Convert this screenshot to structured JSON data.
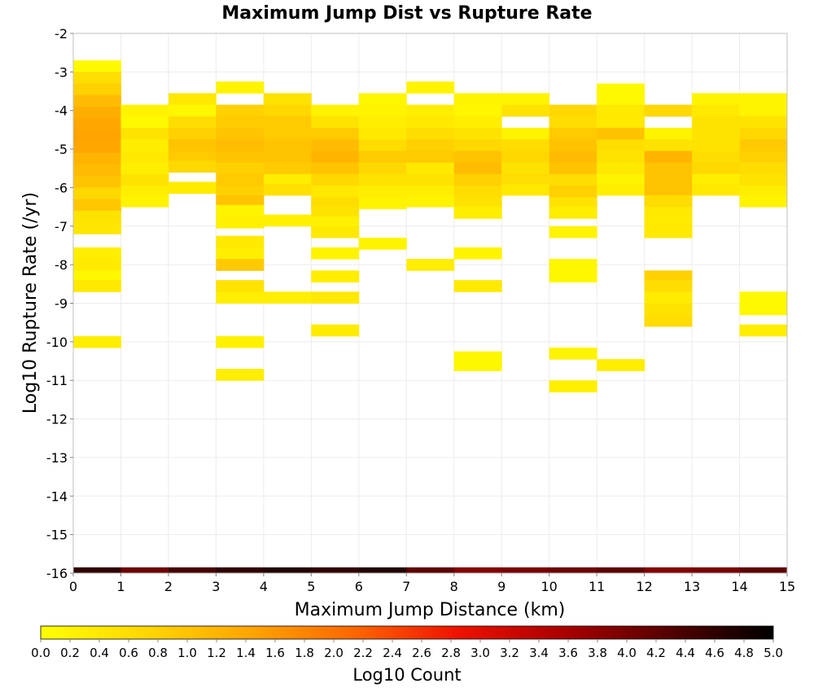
{
  "chart_data": {
    "type": "heatmap",
    "title": "Maximum Jump Dist vs Rupture Rate",
    "xlabel": "Maximum Jump Distance (km)",
    "ylabel": "Log10 Rupture Rate (/yr)",
    "xlim": [
      0,
      15
    ],
    "ylim": [
      -16,
      -2
    ],
    "x_ticks": [
      "0",
      "1",
      "2",
      "3",
      "4",
      "5",
      "6",
      "7",
      "8",
      "9",
      "10",
      "11",
      "12",
      "13",
      "14",
      "15"
    ],
    "y_ticks": [
      "-2",
      "-3",
      "-4",
      "-5",
      "-6",
      "-7",
      "-8",
      "-9",
      "-10",
      "-11",
      "-12",
      "-13",
      "-14",
      "-15",
      "-16"
    ],
    "x_bin_width": 1,
    "y_bin_height": 0.3,
    "grid": true,
    "colorbar": {
      "label": "Log10 Count",
      "range": [
        0,
        5
      ],
      "ticks": [
        "0.0",
        "0.2",
        "0.4",
        "0.6",
        "0.8",
        "1.0",
        "1.2",
        "1.4",
        "1.6",
        "1.8",
        "2.0",
        "2.2",
        "2.4",
        "2.6",
        "2.8",
        "3.0",
        "3.2",
        "3.4",
        "3.6",
        "3.8",
        "4.0",
        "4.2",
        "4.4",
        "4.6",
        "4.8",
        "5.0"
      ],
      "colors": [
        "#ffff00",
        "#ffd700",
        "#ffa500",
        "#ff6600",
        "#ee1100",
        "#aa0000",
        "#550000",
        "#000000"
      ]
    },
    "cells": [
      [
        0,
        -2.85,
        0.1
      ],
      [
        0,
        -3.15,
        0.6
      ],
      [
        0,
        -3.45,
        0.8
      ],
      [
        0,
        -3.75,
        1.1
      ],
      [
        0,
        -4.05,
        1.3
      ],
      [
        0,
        -4.35,
        1.4
      ],
      [
        0,
        -4.65,
        1.45
      ],
      [
        0,
        -4.95,
        1.4
      ],
      [
        0,
        -5.25,
        1.2
      ],
      [
        0,
        -5.55,
        1.1
      ],
      [
        0,
        -5.85,
        1.0
      ],
      [
        0,
        -6.15,
        0.7
      ],
      [
        0,
        -6.45,
        0.95
      ],
      [
        0,
        -6.75,
        0.5
      ],
      [
        0,
        -7.05,
        0.45
      ],
      [
        0,
        -7.7,
        0.3
      ],
      [
        0,
        -8.0,
        0.35
      ],
      [
        0,
        -8.3,
        0.15
      ],
      [
        0,
        -8.55,
        0.4
      ],
      [
        0,
        -10.0,
        0.3
      ],
      [
        1,
        -4.0,
        0.2
      ],
      [
        1,
        -4.3,
        0.1
      ],
      [
        1,
        -4.6,
        0.5
      ],
      [
        1,
        -4.9,
        0.3
      ],
      [
        1,
        -5.2,
        0.4
      ],
      [
        1,
        -5.5,
        0.3
      ],
      [
        1,
        -5.8,
        0.5
      ],
      [
        1,
        -6.1,
        0.3
      ],
      [
        1,
        -6.35,
        0.2
      ],
      [
        2,
        -3.7,
        0.4
      ],
      [
        2,
        -4.0,
        0.15
      ],
      [
        2,
        -4.3,
        0.6
      ],
      [
        2,
        -4.6,
        0.8
      ],
      [
        2,
        -4.9,
        1.0
      ],
      [
        2,
        -5.2,
        0.9
      ],
      [
        2,
        -5.45,
        0.7
      ],
      [
        2,
        -6.0,
        0.35
      ],
      [
        3,
        -3.4,
        0.2
      ],
      [
        3,
        -4.0,
        0.8
      ],
      [
        3,
        -4.3,
        0.9
      ],
      [
        3,
        -4.6,
        1.0
      ],
      [
        3,
        -4.9,
        1.1
      ],
      [
        3,
        -5.2,
        1.0
      ],
      [
        3,
        -5.5,
        0.8
      ],
      [
        3,
        -5.8,
        0.9
      ],
      [
        3,
        -6.1,
        0.8
      ],
      [
        3,
        -6.35,
        1.0
      ],
      [
        3,
        -6.6,
        0.2
      ],
      [
        3,
        -6.9,
        0.25
      ],
      [
        3,
        -7.4,
        0.4
      ],
      [
        3,
        -7.7,
        0.3
      ],
      [
        3,
        -8.0,
        0.9
      ],
      [
        3,
        -8.55,
        0.5
      ],
      [
        3,
        -8.85,
        0.3
      ],
      [
        3,
        -10.0,
        0.25
      ],
      [
        3,
        -10.85,
        0.3
      ],
      [
        4,
        -3.7,
        0.5
      ],
      [
        4,
        -4.0,
        0.7
      ],
      [
        4,
        -4.3,
        0.9
      ],
      [
        4,
        -4.6,
        0.9
      ],
      [
        4,
        -4.9,
        1.0
      ],
      [
        4,
        -5.2,
        1.0
      ],
      [
        4,
        -5.5,
        0.9
      ],
      [
        4,
        -5.8,
        0.3
      ],
      [
        4,
        -6.05,
        0.55
      ],
      [
        4,
        -6.85,
        0.25
      ],
      [
        4,
        -8.85,
        0.3
      ],
      [
        5,
        -4.0,
        0.2
      ],
      [
        5,
        -4.3,
        0.5
      ],
      [
        5,
        -4.6,
        0.9
      ],
      [
        5,
        -4.9,
        1.1
      ],
      [
        5,
        -5.2,
        1.2
      ],
      [
        5,
        -5.5,
        1.0
      ],
      [
        5,
        -5.8,
        0.7
      ],
      [
        5,
        -6.1,
        0.4
      ],
      [
        5,
        -6.4,
        0.6
      ],
      [
        5,
        -6.65,
        0.5
      ],
      [
        5,
        -6.9,
        0.25
      ],
      [
        5,
        -7.15,
        0.4
      ],
      [
        5,
        -7.7,
        0.2
      ],
      [
        5,
        -8.3,
        0.3
      ],
      [
        5,
        -8.85,
        0.4
      ],
      [
        5,
        -9.7,
        0.35
      ],
      [
        6,
        -3.7,
        0.15
      ],
      [
        6,
        -4.0,
        0.2
      ],
      [
        6,
        -4.3,
        0.3
      ],
      [
        6,
        -4.6,
        0.4
      ],
      [
        6,
        -4.9,
        0.6
      ],
      [
        6,
        -5.2,
        0.9
      ],
      [
        6,
        -5.5,
        0.7
      ],
      [
        6,
        -5.8,
        0.5
      ],
      [
        6,
        -6.1,
        0.3
      ],
      [
        6,
        -6.4,
        0.2
      ],
      [
        6,
        -7.45,
        0.2
      ],
      [
        7,
        -3.4,
        0.2
      ],
      [
        7,
        -4.0,
        0.3
      ],
      [
        7,
        -4.3,
        0.4
      ],
      [
        7,
        -4.6,
        0.6
      ],
      [
        7,
        -4.9,
        0.8
      ],
      [
        7,
        -5.2,
        0.9
      ],
      [
        7,
        -5.5,
        0.4
      ],
      [
        7,
        -5.8,
        0.5
      ],
      [
        7,
        -6.1,
        0.3
      ],
      [
        7,
        -6.35,
        0.2
      ],
      [
        7,
        -8.0,
        0.3
      ],
      [
        8,
        -3.7,
        0.2
      ],
      [
        8,
        -4.0,
        0.15
      ],
      [
        8,
        -4.3,
        0.3
      ],
      [
        8,
        -4.6,
        0.5
      ],
      [
        8,
        -4.9,
        0.7
      ],
      [
        8,
        -5.2,
        1.0
      ],
      [
        8,
        -5.5,
        1.1
      ],
      [
        8,
        -5.8,
        0.8
      ],
      [
        8,
        -6.1,
        0.6
      ],
      [
        8,
        -6.4,
        0.5
      ],
      [
        8,
        -6.65,
        0.3
      ],
      [
        8,
        -7.7,
        0.2
      ],
      [
        8,
        -8.55,
        0.4
      ],
      [
        8,
        -10.4,
        0.15
      ],
      [
        8,
        -10.6,
        0.15
      ],
      [
        9,
        -3.7,
        0.2
      ],
      [
        9,
        -4.0,
        0.5
      ],
      [
        9,
        -4.6,
        0.2
      ],
      [
        9,
        -4.9,
        0.6
      ],
      [
        9,
        -5.2,
        0.7
      ],
      [
        9,
        -5.5,
        0.5
      ],
      [
        9,
        -5.8,
        0.6
      ],
      [
        9,
        -6.05,
        0.4
      ],
      [
        10,
        -4.0,
        0.7
      ],
      [
        10,
        -4.3,
        0.6
      ],
      [
        10,
        -4.6,
        0.9
      ],
      [
        10,
        -4.9,
        1.0
      ],
      [
        10,
        -5.2,
        1.1
      ],
      [
        10,
        -5.5,
        1.0
      ],
      [
        10,
        -5.8,
        0.6
      ],
      [
        10,
        -6.1,
        0.8
      ],
      [
        10,
        -6.4,
        0.5
      ],
      [
        10,
        -6.65,
        0.3
      ],
      [
        10,
        -7.15,
        0.2
      ],
      [
        10,
        -8.0,
        0.15
      ],
      [
        10,
        -8.3,
        0.15
      ],
      [
        10,
        -10.3,
        0.2
      ],
      [
        10,
        -11.15,
        0.25
      ],
      [
        11,
        -3.45,
        0.1
      ],
      [
        11,
        -3.7,
        0.1
      ],
      [
        11,
        -4.0,
        0.4
      ],
      [
        11,
        -4.3,
        0.4
      ],
      [
        11,
        -4.6,
        1.0
      ],
      [
        11,
        -4.9,
        0.6
      ],
      [
        11,
        -5.2,
        0.5
      ],
      [
        11,
        -5.5,
        0.4
      ],
      [
        11,
        -5.8,
        0.2
      ],
      [
        11,
        -6.05,
        0.3
      ],
      [
        11,
        -10.6,
        0.3
      ],
      [
        12,
        -4.0,
        0.7
      ],
      [
        12,
        -4.6,
        0.2
      ],
      [
        12,
        -4.9,
        0.5
      ],
      [
        12,
        -5.2,
        1.2
      ],
      [
        12,
        -5.5,
        1.0
      ],
      [
        12,
        -5.8,
        1.0
      ],
      [
        12,
        -6.05,
        1.0
      ],
      [
        12,
        -6.35,
        0.6
      ],
      [
        12,
        -6.65,
        0.4
      ],
      [
        12,
        -6.9,
        0.35
      ],
      [
        12,
        -7.15,
        0.4
      ],
      [
        12,
        -8.3,
        0.8
      ],
      [
        12,
        -8.55,
        0.6
      ],
      [
        12,
        -8.85,
        0.35
      ],
      [
        12,
        -9.15,
        0.5
      ],
      [
        12,
        -9.45,
        0.6
      ],
      [
        13,
        -3.7,
        0.2
      ],
      [
        13,
        -4.0,
        0.4
      ],
      [
        13,
        -4.3,
        0.5
      ],
      [
        13,
        -4.6,
        0.5
      ],
      [
        13,
        -4.9,
        0.5
      ],
      [
        13,
        -5.2,
        0.6
      ],
      [
        13,
        -5.5,
        0.7
      ],
      [
        13,
        -5.8,
        0.3
      ],
      [
        13,
        -6.05,
        0.4
      ],
      [
        14,
        -3.7,
        0.2
      ],
      [
        14,
        -4.0,
        0.2
      ],
      [
        14,
        -4.3,
        0.5
      ],
      [
        14,
        -4.6,
        0.7
      ],
      [
        14,
        -4.9,
        0.9
      ],
      [
        14,
        -5.2,
        0.8
      ],
      [
        14,
        -5.5,
        0.6
      ],
      [
        14,
        -5.8,
        0.5
      ],
      [
        14,
        -6.1,
        0.3
      ],
      [
        14,
        -6.35,
        0.2
      ],
      [
        14,
        -8.85,
        0.1
      ],
      [
        14,
        -9.15,
        0.1
      ],
      [
        14,
        -9.7,
        0.3
      ]
    ],
    "bottom_row": {
      "y": -15.93,
      "values": [
        4.6,
        4.1,
        4.4,
        4.6,
        4.7,
        4.6,
        4.7,
        4.2,
        3.9,
        4.0,
        4.1,
        4.2,
        3.9,
        4.0,
        4.2
      ]
    }
  }
}
